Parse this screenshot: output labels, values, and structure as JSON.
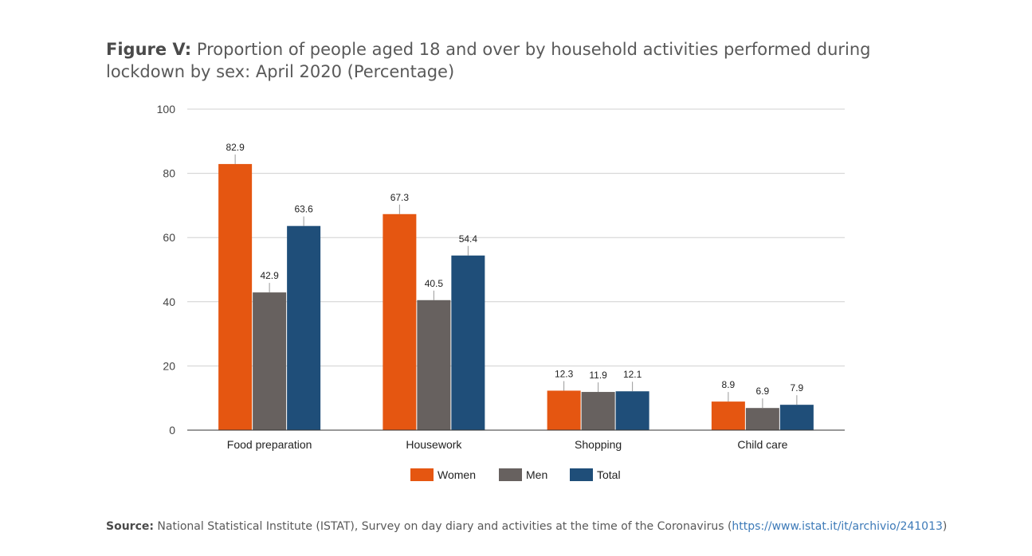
{
  "figure": {
    "label": "Figure V:",
    "title": "Proportion of people aged 18 and over by household activities performed during lockdown by sex: April 2020 (Percentage)"
  },
  "source": {
    "label": "Source:",
    "text": "National Statistical Institute (ISTAT), Survey on day diary and activities at the time of the Coronavirus (",
    "link": "https://www.istat.it/it/archivio/241013",
    "close": ")"
  },
  "chart_data": {
    "type": "bar",
    "categories": [
      "Food preparation",
      "Housework",
      "Shopping",
      "Child care"
    ],
    "series": [
      {
        "name": "Women",
        "color": "#e55611",
        "values": [
          82.9,
          67.3,
          12.3,
          8.9
        ]
      },
      {
        "name": "Men",
        "color": "#67615f",
        "values": [
          42.9,
          40.5,
          11.9,
          6.9
        ]
      },
      {
        "name": "Total",
        "color": "#1f4e79",
        "values": [
          63.6,
          54.4,
          12.1,
          7.9
        ]
      }
    ],
    "ylim": [
      0,
      100
    ],
    "yticks": [
      0,
      20,
      40,
      60,
      80,
      100
    ],
    "grid": true,
    "legend": "bottom"
  }
}
